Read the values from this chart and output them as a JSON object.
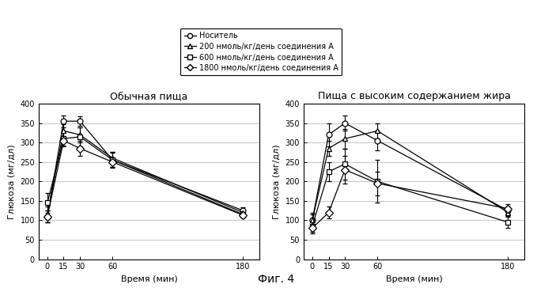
{
  "title_left": "Обычная пища",
  "title_right": "Пища с высоким содержанием жира",
  "xlabel": "Время (мин)",
  "ylabel": "Глюкоза (мг/дл)",
  "fig_caption": "Фиг. 4",
  "legend_labels": [
    "Носитель",
    "200 нмоль/кг/день соединения А",
    "600 нмоль/кг/день соединения А",
    "1800 нмоль/кг/день соединения А"
  ],
  "xticks": [
    0,
    15,
    30,
    60,
    180
  ],
  "ylim": [
    0,
    400
  ],
  "yticks": [
    0,
    50,
    100,
    150,
    200,
    250,
    300,
    350,
    400
  ],
  "left_data": {
    "x": [
      0,
      15,
      30,
      60,
      180
    ],
    "carrier": [
      110,
      355,
      355,
      255,
      125
    ],
    "dose200": [
      115,
      330,
      320,
      260,
      120
    ],
    "dose600": [
      145,
      310,
      315,
      255,
      115
    ],
    "dose1800": [
      110,
      305,
      285,
      250,
      113
    ],
    "carrier_err": [
      15,
      15,
      12,
      20,
      8
    ],
    "dose200_err": [
      20,
      18,
      20,
      15,
      8
    ],
    "dose600_err": [
      25,
      20,
      25,
      18,
      7
    ],
    "dose1800_err": [
      15,
      12,
      20,
      12,
      6
    ]
  },
  "right_data": {
    "x": [
      0,
      15,
      30,
      60,
      180
    ],
    "carrier": [
      100,
      320,
      350,
      305,
      125
    ],
    "dose200": [
      100,
      285,
      310,
      330,
      120
    ],
    "dose600": [
      85,
      225,
      245,
      200,
      95
    ],
    "dose1800": [
      80,
      120,
      230,
      195,
      130
    ],
    "carrier_err": [
      15,
      30,
      20,
      25,
      10
    ],
    "dose200_err": [
      20,
      20,
      25,
      20,
      8
    ],
    "dose600_err": [
      18,
      25,
      40,
      55,
      15
    ],
    "dose1800_err": [
      10,
      15,
      35,
      30,
      12
    ]
  },
  "line_color": "#000000",
  "markers": {
    "carrier": "o",
    "dose200": "^",
    "dose600": "s",
    "dose1800": "D"
  },
  "marker_sizes": {
    "carrier": 5,
    "dose200": 5,
    "dose600": 5,
    "dose1800": 5
  },
  "background": "#ffffff",
  "grid_color": "#bbbbbb"
}
